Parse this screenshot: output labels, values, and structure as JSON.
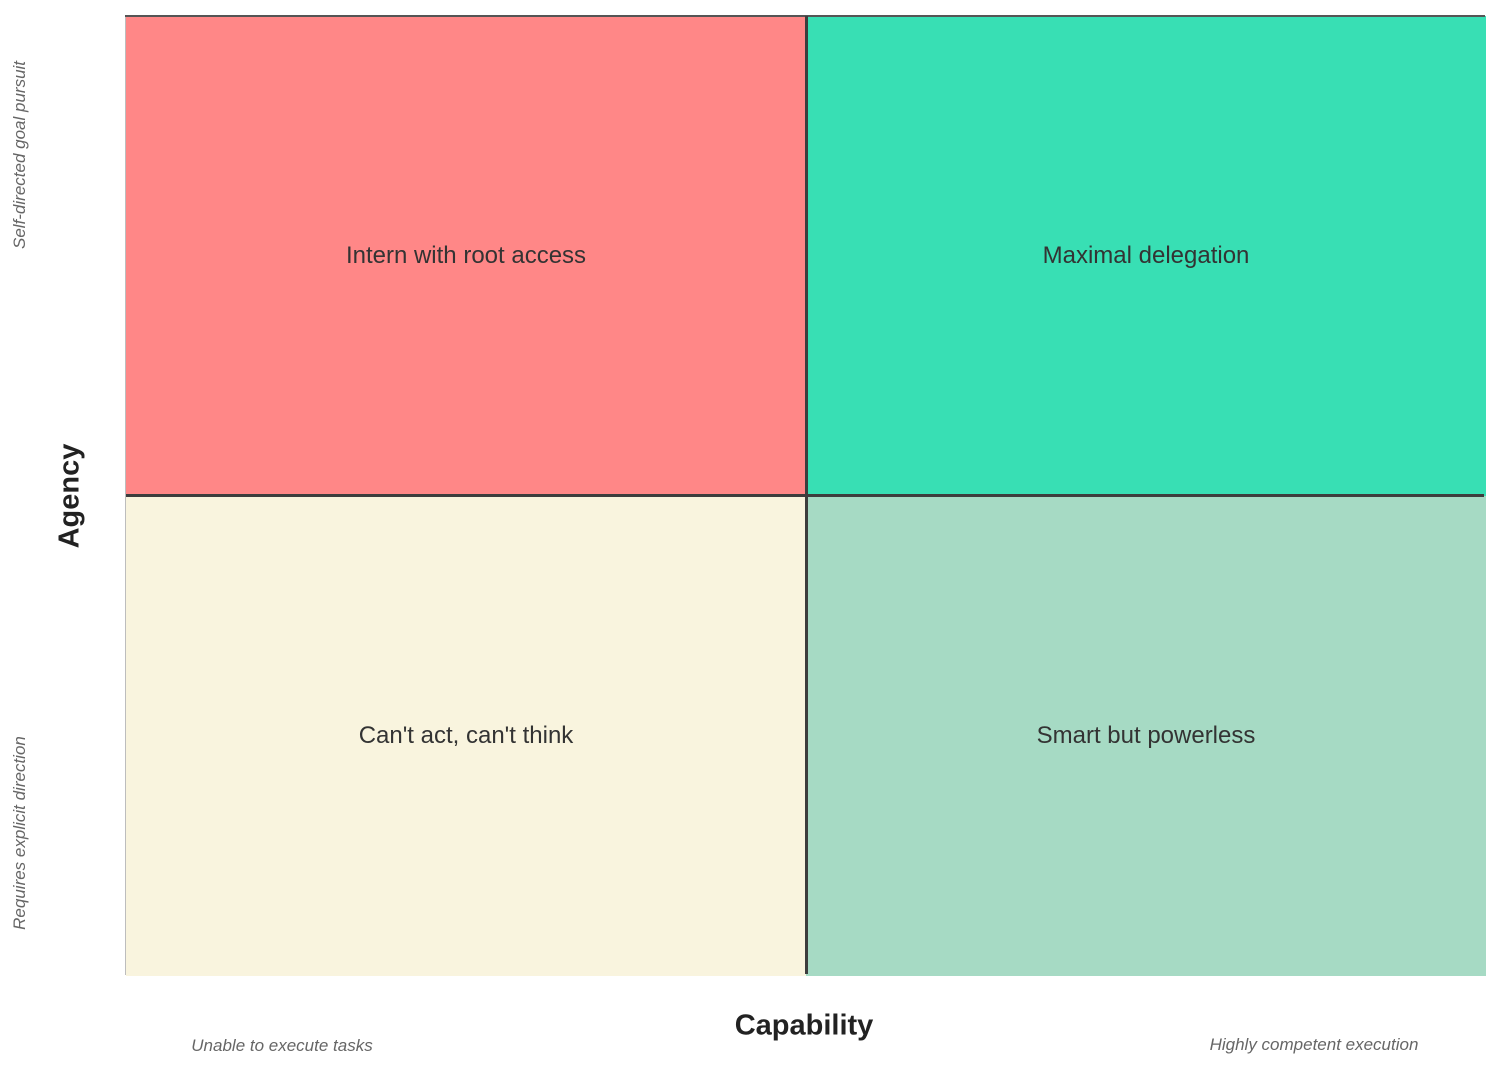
{
  "diagram": {
    "axes": {
      "x": {
        "title": "Capability",
        "low_label": "Unable to execute tasks",
        "high_label": "Highly competent execution"
      },
      "y": {
        "title": "Agency",
        "high_label": "Self-directed goal pursuit",
        "low_label": "Requires explicit direction"
      }
    },
    "quadrants": {
      "top_left": {
        "label": "Intern with root access",
        "color": "#ff8787"
      },
      "top_right": {
        "label": "Maximal delegation",
        "color": "#38dfb4"
      },
      "bottom_left": {
        "label": "Can't act, can't think",
        "color": "#f9f4de"
      },
      "bottom_right": {
        "label": "Smart but powerless",
        "color": "#a6dac4"
      }
    }
  }
}
